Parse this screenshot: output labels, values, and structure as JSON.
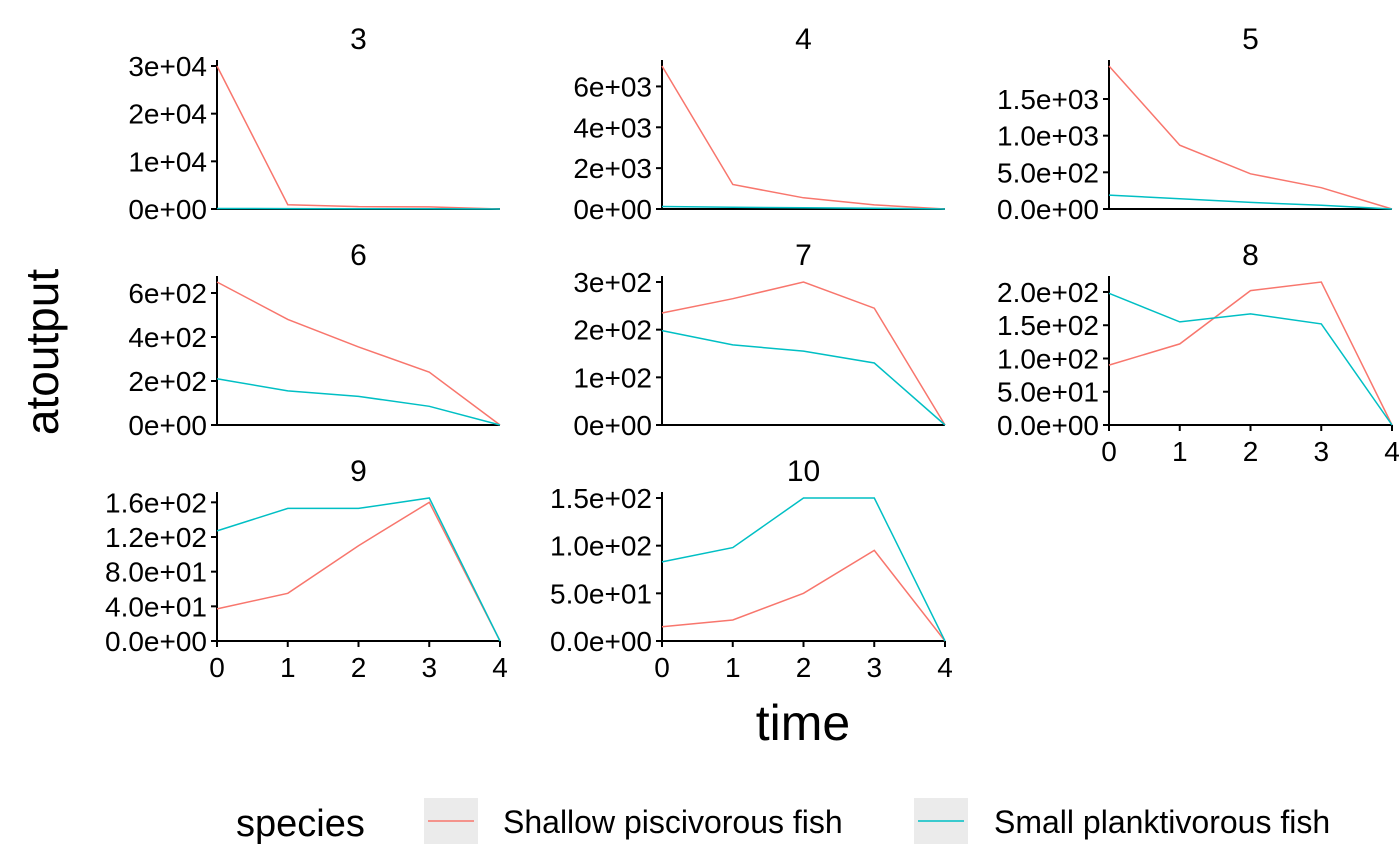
{
  "chart_data": {
    "type": "line",
    "xlabel": "time",
    "ylabel": "atoutput",
    "x": [
      0,
      1,
      2,
      3,
      4
    ],
    "xticks": [
      "0",
      "1",
      "2",
      "3",
      "4"
    ],
    "legend": {
      "title": "species",
      "placement": "bottom",
      "entries": [
        {
          "name": "Shallow piscivorous fish",
          "color": "#F8766D"
        },
        {
          "name": "Small planktivorous fish",
          "color": "#00BFC4"
        }
      ]
    },
    "grid": false,
    "panels": [
      {
        "title": "3",
        "ylim": [
          0,
          30000
        ],
        "yticks": [
          {
            "v": 0,
            "label": "0e+00"
          },
          {
            "v": 10000,
            "label": "1e+04"
          },
          {
            "v": 20000,
            "label": "2e+04"
          },
          {
            "v": 30000,
            "label": "3e+04"
          }
        ],
        "series": [
          {
            "name": "Shallow piscivorous fish",
            "values": [
              30000,
              900,
              500,
              450,
              0
            ]
          },
          {
            "name": "Small planktivorous fish",
            "values": [
              100,
              80,
              60,
              40,
              0
            ]
          }
        ]
      },
      {
        "title": "4",
        "ylim": [
          0,
          7000
        ],
        "yticks": [
          {
            "v": 0,
            "label": "0e+00"
          },
          {
            "v": 2000,
            "label": "2e+03"
          },
          {
            "v": 4000,
            "label": "4e+03"
          },
          {
            "v": 6000,
            "label": "6e+03"
          }
        ],
        "series": [
          {
            "name": "Shallow piscivorous fish",
            "values": [
              7000,
              1200,
              550,
              200,
              0
            ]
          },
          {
            "name": "Small planktivorous fish",
            "values": [
              120,
              90,
              60,
              40,
              0
            ]
          }
        ]
      },
      {
        "title": "5",
        "ylim": [
          0,
          1950
        ],
        "yticks": [
          {
            "v": 0,
            "label": "0.0e+00"
          },
          {
            "v": 500,
            "label": "5.0e+02"
          },
          {
            "v": 1000,
            "label": "1.0e+03"
          },
          {
            "v": 1500,
            "label": "1.5e+03"
          }
        ],
        "series": [
          {
            "name": "Shallow piscivorous fish",
            "values": [
              1950,
              870,
              480,
              290,
              0
            ]
          },
          {
            "name": "Small planktivorous fish",
            "values": [
              190,
              140,
              90,
              50,
              0
            ]
          }
        ]
      },
      {
        "title": "6",
        "ylim": [
          0,
          650
        ],
        "yticks": [
          {
            "v": 0,
            "label": "0e+00"
          },
          {
            "v": 200,
            "label": "2e+02"
          },
          {
            "v": 400,
            "label": "4e+02"
          },
          {
            "v": 600,
            "label": "6e+02"
          }
        ],
        "series": [
          {
            "name": "Shallow piscivorous fish",
            "values": [
              650,
              480,
              355,
              240,
              0
            ]
          },
          {
            "name": "Small planktivorous fish",
            "values": [
              210,
              155,
              130,
              85,
              0
            ]
          }
        ]
      },
      {
        "title": "7",
        "ylim": [
          0,
          300
        ],
        "yticks": [
          {
            "v": 0,
            "label": "0e+00"
          },
          {
            "v": 100,
            "label": "1e+02"
          },
          {
            "v": 200,
            "label": "2e+02"
          },
          {
            "v": 300,
            "label": "3e+02"
          }
        ],
        "series": [
          {
            "name": "Shallow piscivorous fish",
            "values": [
              235,
              265,
              300,
              245,
              0
            ]
          },
          {
            "name": "Small planktivorous fish",
            "values": [
              198,
              168,
              155,
              130,
              0
            ]
          }
        ]
      },
      {
        "title": "8",
        "ylim": [
          0,
          215
        ],
        "xticks": true,
        "yticks": [
          {
            "v": 0,
            "label": "0.0e+00"
          },
          {
            "v": 50,
            "label": "5.0e+01"
          },
          {
            "v": 100,
            "label": "1.0e+02"
          },
          {
            "v": 150,
            "label": "1.5e+02"
          },
          {
            "v": 200,
            "label": "2.0e+02"
          }
        ],
        "series": [
          {
            "name": "Shallow piscivorous fish",
            "values": [
              90,
              122,
              202,
              215,
              0
            ]
          },
          {
            "name": "Small planktivorous fish",
            "values": [
              198,
              155,
              167,
              152,
              0
            ]
          }
        ]
      },
      {
        "title": "9",
        "ylim": [
          0,
          165
        ],
        "xticks": true,
        "yticks": [
          {
            "v": 0,
            "label": "0.0e+00"
          },
          {
            "v": 40,
            "label": "4.0e+01"
          },
          {
            "v": 80,
            "label": "8.0e+01"
          },
          {
            "v": 120,
            "label": "1.2e+02"
          },
          {
            "v": 160,
            "label": "1.6e+02"
          }
        ],
        "series": [
          {
            "name": "Shallow piscivorous fish",
            "values": [
              37,
              55,
              110,
              160,
              0
            ]
          },
          {
            "name": "Small planktivorous fish",
            "values": [
              127,
              153,
              153,
              165,
              0
            ]
          }
        ]
      },
      {
        "title": "10",
        "ylim": [
          0,
          150
        ],
        "xticks": true,
        "yticks": [
          {
            "v": 0,
            "label": "0.0e+00"
          },
          {
            "v": 50,
            "label": "5.0e+01"
          },
          {
            "v": 100,
            "label": "1.0e+02"
          },
          {
            "v": 150,
            "label": "1.5e+02"
          }
        ],
        "series": [
          {
            "name": "Shallow piscivorous fish",
            "values": [
              15,
              22,
              50,
              95,
              0
            ]
          },
          {
            "name": "Small planktivorous fish",
            "values": [
              83,
              98,
              150,
              150,
              0
            ]
          }
        ]
      }
    ]
  }
}
